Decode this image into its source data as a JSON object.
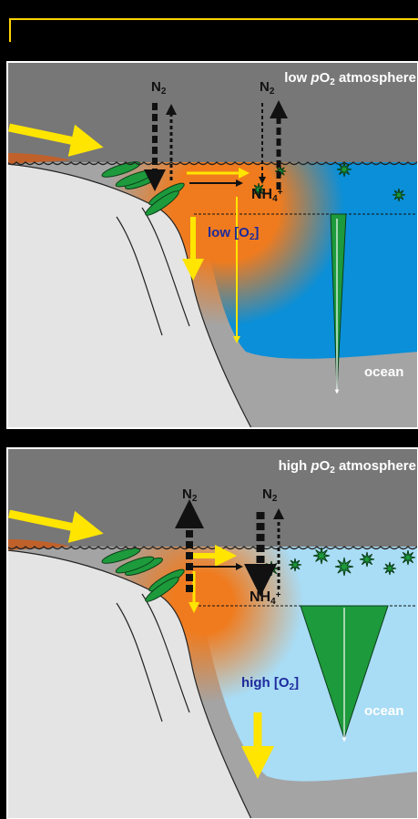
{
  "panels": [
    {
      "atmosphere": {
        "pre": "low ",
        "p": "p",
        "gas": "O",
        "sub": "2",
        "tail": " atmosphere"
      },
      "n2_left": {
        "base": "N",
        "sub": "2"
      },
      "n2_right": {
        "base": "N",
        "sub": "2"
      },
      "ammonium": {
        "base": "NH",
        "sub": "4",
        "sup": "+"
      },
      "oxygen": {
        "base": "low [O",
        "sub": "2",
        "tail": "]"
      },
      "ocean": "ocean"
    },
    {
      "atmosphere": {
        "pre": "high ",
        "p": "p",
        "gas": "O",
        "sub": "2",
        "tail": " atmosphere"
      },
      "n2_left": {
        "base": "N",
        "sub": "2"
      },
      "n2_right": {
        "base": "N",
        "sub": "2"
      },
      "ammonium": {
        "base": "NH",
        "sub": "4",
        "sup": "+"
      },
      "oxygen": {
        "base": "high [O",
        "sub": "2",
        "tail": "]"
      },
      "ocean": "ocean"
    }
  ]
}
